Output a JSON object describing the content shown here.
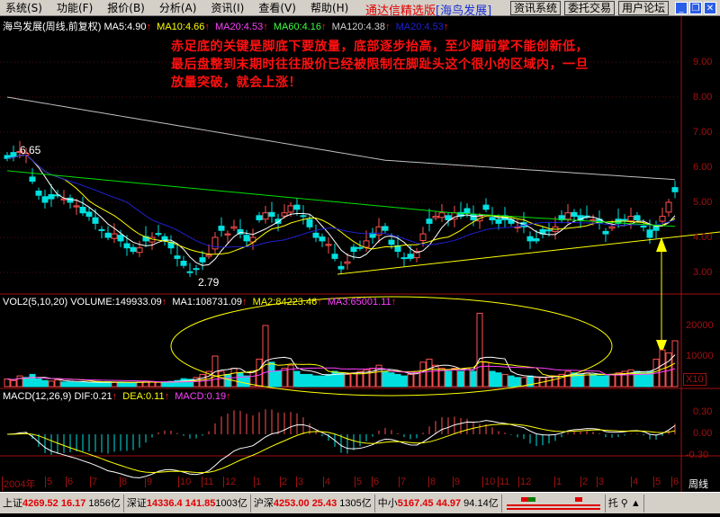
{
  "menu": [
    "系统(S)",
    "功能(F)",
    "报价(B)",
    "分析(A)",
    "资讯(I)",
    "查看(V)",
    "帮助(H)"
  ],
  "brand": {
    "app": "通达信精选版",
    "stock": "[海鸟发展]"
  },
  "toolbar": {
    "news": "资讯系统",
    "trade": "委托交易",
    "forum": "用户论坛"
  },
  "window_controls": {
    "minimize": "_",
    "restore": "❐",
    "close": "✕"
  },
  "price_panel": {
    "title": "海鸟发展(周线,前复权)",
    "ma5": "MA5:4.90",
    "ma10": "MA10:4.66",
    "ma20": "MA20:4.53",
    "ma60": "MA60:4.16",
    "ma120": "MA120:4.38",
    "ma20b": "MA20:4.53",
    "high_label": "6.65",
    "low_label": "2.79",
    "y_ticks": [
      "9.00",
      "8.00",
      "7.00",
      "6.00",
      "5.00",
      "4.00",
      "3.00"
    ]
  },
  "annotation": "赤足底的关键是脚底下要放量，底部逐步抬高，至少脚前掌不能创新低，最后盘整到末期时往往股价已经被限制在脚趾头这个很小的区域内，一旦放量突破，就会上涨！",
  "volume_panel": {
    "title": "VOL2(5,10,20)",
    "volume": "VOLUME:149933.09",
    "ma1": "MA1:108731.09",
    "ma2": "MA2:84223.46",
    "ma3": "MA3:65001.11",
    "y_ticks": [
      "20000",
      "10000"
    ],
    "unit": "X10"
  },
  "macd_panel": {
    "title": "MACD(12,26,9)",
    "dif": "DIF:0.21",
    "dea": "DEA:0.11",
    "macd": "MACD:0.19",
    "y_ticks": [
      "0.30",
      "0.00",
      "-0.30"
    ]
  },
  "x_axis": [
    "2004年",
    "5",
    "6",
    "7",
    "8",
    "9",
    "10",
    "11",
    "12",
    "1",
    "2",
    "3",
    "4",
    "5",
    "6",
    "7",
    "8",
    "9",
    "10",
    "11",
    "12",
    "1",
    "2",
    "3",
    "4",
    "5",
    "6"
  ],
  "period": "周线",
  "colors": {
    "up": "#ff5050",
    "down": "#00e0e0",
    "ma5": "#ffffff",
    "ma10": "#ffff00",
    "ma20": "#ff40ff",
    "ma60": "#00e000",
    "ma120": "#c0c0c0",
    "ma20b": "#2020d0",
    "axis": "#a01010"
  },
  "chart_data": {
    "type": "candlestick",
    "period": "weekly",
    "closes": [
      6.25,
      6.3,
      6.45,
      6.4,
      5.6,
      5.2,
      5.0,
      5.1,
      5.2,
      5.1,
      5.0,
      4.9,
      4.7,
      4.6,
      4.4,
      4.2,
      4.0,
      4.1,
      3.9,
      3.7,
      3.6,
      3.7,
      3.9,
      4.0,
      4.1,
      3.9,
      3.7,
      3.4,
      3.2,
      3.0,
      3.1,
      3.3,
      3.5,
      4.0,
      4.2,
      4.1,
      4.3,
      4.1,
      3.9,
      4.0,
      4.5,
      4.7,
      4.6,
      4.4,
      4.7,
      4.9,
      4.8,
      4.6,
      4.3,
      4.0,
      3.9,
      3.8,
      3.4,
      3.1,
      3.3,
      3.6,
      3.7,
      3.9,
      4.0,
      4.3,
      4.2,
      3.8,
      3.6,
      3.4,
      3.4,
      3.6,
      4.1,
      4.4,
      4.6,
      4.7,
      4.5,
      4.7,
      4.6,
      4.7,
      4.5,
      4.6,
      4.8,
      4.5,
      4.4,
      4.5,
      4.4,
      4.3,
      4.3,
      3.9,
      3.9,
      4.1,
      4.2,
      4.3,
      4.5,
      4.7,
      4.6,
      4.5,
      4.6,
      4.5,
      4.4,
      4.1,
      4.3,
      4.4,
      4.5,
      4.6,
      4.5,
      4.3,
      4.0,
      4.2,
      4.6,
      5.0,
      5.3
    ],
    "volumes": [
      2500,
      2000,
      3500,
      3000,
      4000,
      2500,
      2000,
      1800,
      2200,
      1500,
      1600,
      1400,
      1500,
      1300,
      1500,
      1200,
      1600,
      1400,
      1500,
      1300,
      1200,
      1500,
      1800,
      1600,
      1400,
      1500,
      1700,
      2000,
      2600,
      2400,
      3000,
      4000,
      5000,
      10000,
      5000,
      4000,
      6000,
      4500,
      3500,
      5000,
      9000,
      20000,
      8000,
      5000,
      6000,
      7000,
      5000,
      4000,
      4000,
      3500,
      3500,
      4000,
      5000,
      4500,
      4000,
      4500,
      5000,
      5500,
      6000,
      7000,
      5000,
      4500,
      4000,
      3500,
      4000,
      5000,
      8000,
      9000,
      7000,
      6000,
      5000,
      6000,
      5000,
      6000,
      5000,
      24000,
      8000,
      5000,
      4500,
      4000,
      3500,
      3000,
      3000,
      3500,
      3000,
      3000,
      3200,
      3500,
      4000,
      5000,
      4500,
      4000,
      4500,
      4000,
      3500,
      3500,
      4000,
      4500,
      5000,
      5500,
      5000,
      4500,
      5000,
      9000,
      12000,
      11000,
      15000
    ],
    "ylim": [
      2.6,
      9.8
    ]
  }
}
